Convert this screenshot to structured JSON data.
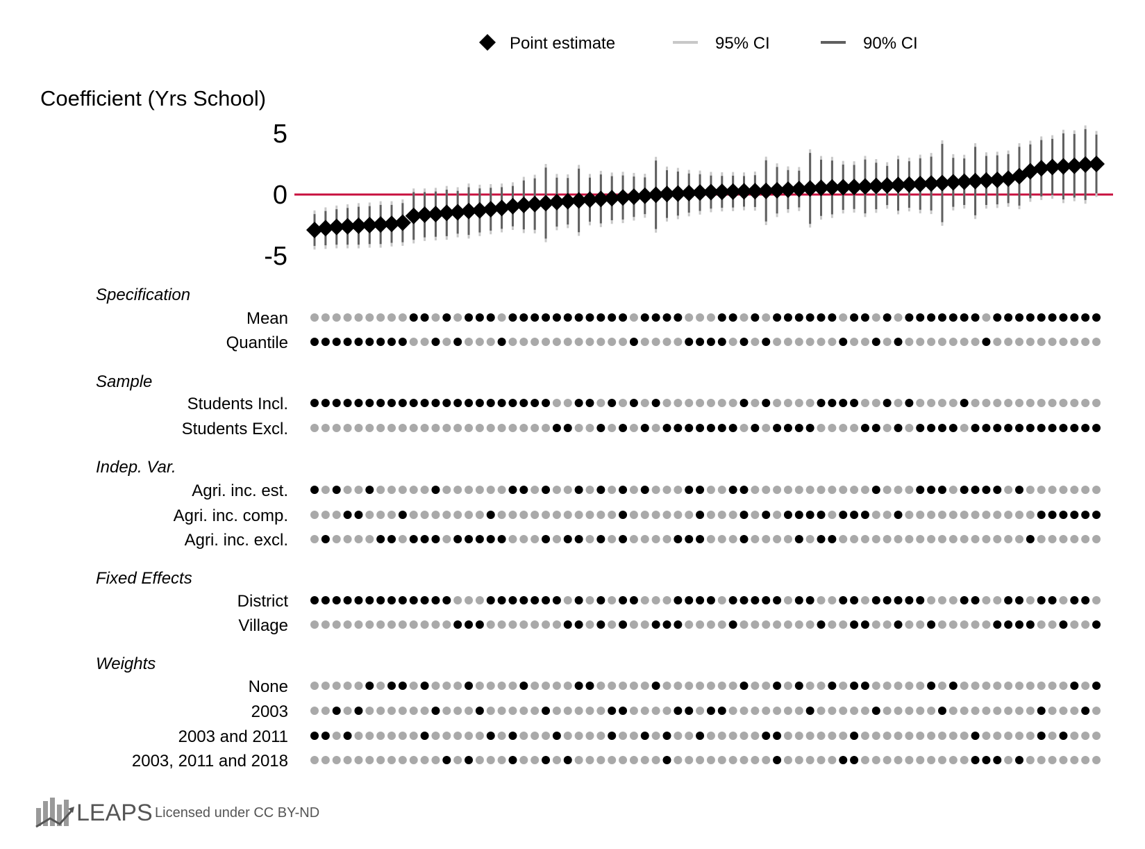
{
  "chart_data": {
    "type": "specification-curve",
    "ylabel": "Coefficient (Yrs School)",
    "yticks": [
      5,
      0,
      -5
    ],
    "ylim": [
      -6.0,
      7.5
    ],
    "reference_line": 0,
    "legend": {
      "point": "Point estimate",
      "ci95": "95% CI",
      "ci90": "90% CI"
    },
    "n_specs": 72,
    "estimates": [
      -2.9,
      -2.75,
      -2.65,
      -2.6,
      -2.55,
      -2.5,
      -2.45,
      -2.4,
      -2.3,
      -1.75,
      -1.65,
      -1.6,
      -1.5,
      -1.45,
      -1.35,
      -1.3,
      -1.2,
      -1.1,
      -0.95,
      -0.85,
      -0.78,
      -0.7,
      -0.62,
      -0.55,
      -0.48,
      -0.42,
      -0.36,
      -0.3,
      -0.24,
      -0.18,
      -0.1,
      -0.02,
      0.04,
      0.08,
      0.12,
      0.16,
      0.2,
      0.22,
      0.24,
      0.26,
      0.28,
      0.3,
      0.35,
      0.4,
      0.45,
      0.5,
      0.55,
      0.58,
      0.6,
      0.62,
      0.66,
      0.7,
      0.74,
      0.78,
      0.82,
      0.86,
      0.9,
      0.94,
      1.0,
      1.05,
      1.1,
      1.15,
      1.2,
      1.3,
      1.5,
      1.9,
      2.15,
      2.25,
      2.3,
      2.35,
      2.45,
      2.5
    ],
    "ci90_half": [
      1.3,
      1.4,
      1.45,
      1.5,
      1.55,
      1.55,
      1.6,
      1.55,
      1.6,
      1.95,
      1.85,
      1.85,
      1.9,
      1.75,
      1.95,
      1.8,
      1.75,
      1.7,
      1.65,
      2.0,
      2.1,
      2.9,
      2.0,
      1.9,
      2.6,
      1.8,
      2.0,
      1.8,
      1.8,
      1.65,
      1.5,
      2.8,
      1.95,
      1.8,
      1.6,
      1.5,
      1.35,
      1.3,
      1.3,
      1.25,
      1.3,
      2.5,
      1.9,
      1.6,
      1.5,
      2.9,
      2.3,
      2.2,
      1.85,
      1.8,
      2.2,
      1.9,
      1.6,
      2.1,
      1.9,
      2.1,
      2.2,
      3.2,
      2.0,
      1.9,
      2.8,
      2.0,
      2.0,
      2.0,
      2.4,
      2.2,
      2.3,
      2.3,
      2.7,
      2.6,
      2.9,
      2.4
    ],
    "ci95_half": [
      1.6,
      1.7,
      1.75,
      1.8,
      1.85,
      1.85,
      1.9,
      1.85,
      1.9,
      2.25,
      2.15,
      2.15,
      2.2,
      2.05,
      2.25,
      2.1,
      2.05,
      2.0,
      1.95,
      2.3,
      2.4,
      3.2,
      2.3,
      2.2,
      2.9,
      2.1,
      2.3,
      2.1,
      2.1,
      1.95,
      1.8,
      3.1,
      2.25,
      2.1,
      1.9,
      1.8,
      1.65,
      1.6,
      1.6,
      1.55,
      1.6,
      2.8,
      2.2,
      1.9,
      1.8,
      3.2,
      2.6,
      2.5,
      2.15,
      2.1,
      2.5,
      2.2,
      1.9,
      2.4,
      2.2,
      2.4,
      2.5,
      3.5,
      2.3,
      2.2,
      3.1,
      2.3,
      2.3,
      2.3,
      2.7,
      2.5,
      2.6,
      2.6,
      3.0,
      2.9,
      3.2,
      2.7
    ],
    "groups": [
      {
        "title": "Specification",
        "rows": [
          {
            "label": "Mean",
            "pattern": "000000000110101110111111111110111100011010111111011010111111101111111111"
          },
          {
            "label": "Quantile",
            "pattern": "111111111001010001000000000001000011110101000000100101000000010000000000"
          }
        ]
      },
      {
        "title": "Sample",
        "rows": [
          {
            "label": "Students Incl.",
            "pattern": "111111111111111111111100110101010000000101000011110010100001000000000000"
          }
        ]
      },
      {
        "title": "",
        "rows": [
          {
            "label": "Students Excl.",
            "pattern": "000000000000000000000011001010101111111010111100001101011110111111111111"
          }
        ]
      },
      {
        "title": "Indep. Var.",
        "rows": [
          {
            "label": "Agri. inc. est.",
            "pattern": "101001000001000000110100101010100011001100000000000100011101111010000000"
          },
          {
            "label": "Agri. inc. comp.",
            "pattern": "000110001000000010000000000010000001000101011110111001000000000000111111"
          },
          {
            "label": "Agri. inc. excl.",
            "pattern": "010000110111011111000101101010000111000100001011000000000000000001000000"
          }
        ]
      },
      {
        "title": "Fixed Effects",
        "rows": [
          {
            "label": "District",
            "pattern": "111111111111100011111110101011000111101111101100110111110001100110110110"
          },
          {
            "label": "Village",
            "pattern": "000000000000011100000001101010011100001000000010011001001000001111001001"
          }
        ]
      },
      {
        "title": "Weights",
        "rows": [
          {
            "label": "None",
            "pattern": "000001011010001000010000110000010000000100101001011000001010000000000101"
          },
          {
            "label": "2003",
            "pattern": "001010000001000100000100000110000110110000000100000100000100000000100010"
          },
          {
            "label": "2003 and 2011",
            "pattern": "110100000010000010100010000100101001000001100000010000000000100000101000"
          },
          {
            "label": "2003, 2011 and 2018",
            "pattern": "000000000000101000100101000000001000000000100000110000000000111010000000"
          }
        ]
      }
    ]
  },
  "colors": {
    "line_ref": "#c8103e",
    "point": "#000000",
    "ci95": "#c8c8c8",
    "ci90": "#5f5f5f",
    "dot_on": "#000000",
    "dot_off": "#a9a9a9"
  },
  "footer": {
    "brand": "LEAPS",
    "license": "Licensed under CC BY-ND",
    "logo_icon": "bar-chart-arrow-icon"
  }
}
